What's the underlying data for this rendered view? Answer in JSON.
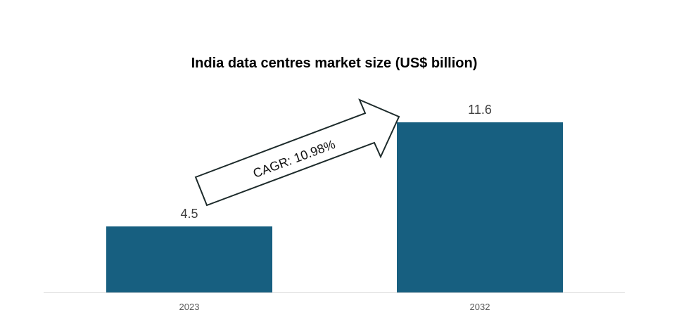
{
  "chart_data": {
    "type": "bar",
    "title": "India data centres market size (US$ billion)",
    "categories": [
      "2023",
      "2032"
    ],
    "values": [
      4.5,
      11.6
    ],
    "data_labels": [
      "4.5",
      "11.6"
    ],
    "xlabel": "",
    "ylabel": "",
    "ylim": [
      0,
      11.6
    ],
    "grid": false,
    "bar_color": "#175f80",
    "annotation": "CAGR: 10.98%"
  }
}
